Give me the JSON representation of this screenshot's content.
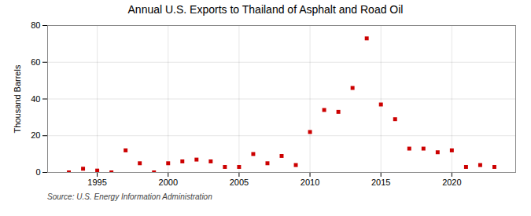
{
  "chart_data": {
    "type": "scatter",
    "title": "Annual U.S. Exports to Thailand of Asphalt and Road Oil",
    "ylabel": "Thousand Barrels",
    "source": "Source: U.S. Energy Information Administration",
    "x": [
      1993,
      1994,
      1995,
      1996,
      1997,
      1998,
      1999,
      2000,
      2001,
      2002,
      2003,
      2004,
      2005,
      2006,
      2007,
      2008,
      2009,
      2010,
      2011,
      2012,
      2013,
      2014,
      2015,
      2016,
      2017,
      2018,
      2019,
      2020,
      2021,
      2022,
      2023
    ],
    "values": [
      0,
      2,
      1,
      0,
      12,
      5,
      0,
      5,
      6,
      7,
      6,
      3,
      3,
      10,
      5,
      9,
      4,
      22,
      34,
      33,
      46,
      73,
      37,
      29,
      13,
      13,
      11,
      12,
      3,
      4,
      3
    ],
    "color": "#cc0000",
    "marker": "square",
    "xlim": [
      1991.5,
      2024.5
    ],
    "xticks": [
      1995,
      2000,
      2005,
      2010,
      2015,
      2020
    ],
    "ylim": [
      0,
      80
    ],
    "yticks": [
      0,
      20,
      40,
      60,
      80
    ],
    "grid": true
  }
}
